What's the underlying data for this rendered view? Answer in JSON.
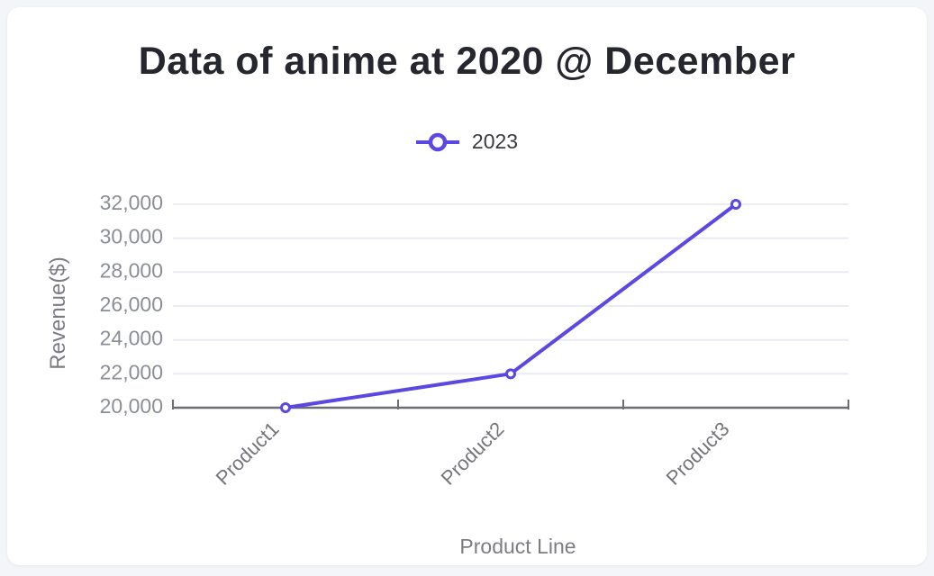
{
  "page": {
    "background": "#f3f5f8",
    "card_background": "#ffffff"
  },
  "chart_data": {
    "type": "line",
    "title": "Data of anime at 2020 @ December",
    "categories": [
      "Product1",
      "Product2",
      "Product3"
    ],
    "series": [
      {
        "name": "2023",
        "values": [
          20000,
          22000,
          32000
        ]
      }
    ],
    "xlabel": "Product Line",
    "ylabel": "Revenue($)",
    "ylim": [
      20000,
      32000
    ],
    "y_ticks": [
      20000,
      22000,
      24000,
      26000,
      28000,
      30000,
      32000
    ],
    "y_tick_labels": [
      "20,000",
      "22,000",
      "24,000",
      "26,000",
      "28,000",
      "30,000",
      "32,000"
    ],
    "grid": true,
    "legend_position": "top"
  },
  "colors": {
    "accent": "#5b47e2",
    "marker_fill": "#ffffff",
    "gridline": "#e7eaf3",
    "axis_line": "#6b6e73",
    "title_text": "#26262e",
    "tick_text": "#8b8e97",
    "category_text": "#75767b",
    "axis_title_text": "#7b7d82",
    "legend_text": "#3a3a40"
  }
}
